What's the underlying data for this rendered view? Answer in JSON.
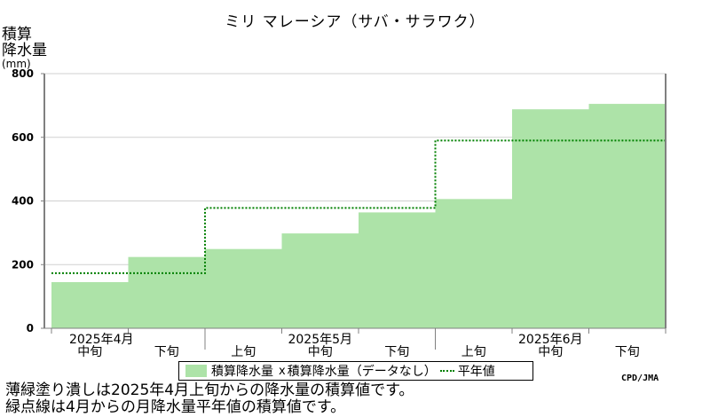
{
  "title": "ミリ マレーシア（サバ・サラワク）",
  "y_axis_label_line1": "積算",
  "y_axis_label_line2": "降水量",
  "y_axis_unit": "(mm)",
  "credit": "CPD/JMA",
  "legend": {
    "series1": "積算降水量",
    "marker": "x",
    "series1_note": "積算降水量（データなし）",
    "series2": "平年値"
  },
  "notes": [
    "薄緑塗り潰しは2025年4月上旬からの降水量の積算値です。",
    "緑点線は4月からの月降水量平年値の積算値です。"
  ],
  "colors": {
    "fill": "#ade3a8",
    "normal_line": "#008000",
    "grid": "#d0d0d0",
    "axis": "#808080"
  },
  "chart_data": {
    "type": "area",
    "categories": [
      "中旬",
      "下旬",
      "上旬",
      "中旬",
      "下旬",
      "上旬",
      "中旬",
      "下旬"
    ],
    "month_labels": [
      {
        "label": "2025年4月",
        "start_index": 0
      },
      {
        "label": "2025年5月",
        "start_index": 2
      },
      {
        "label": "2025年6月",
        "start_index": 5
      }
    ],
    "series": [
      {
        "name": "積算降水量",
        "style": "step-fill",
        "values": [
          145,
          224,
          249,
          298,
          364,
          406,
          688,
          705
        ]
      },
      {
        "name": "平年値",
        "style": "dotted-step",
        "values": [
          173,
          173,
          378,
          378,
          378,
          590,
          590,
          590
        ]
      }
    ],
    "ylim": [
      0,
      800
    ],
    "yticks": [
      0,
      200,
      400,
      600,
      800
    ],
    "grid": true
  }
}
